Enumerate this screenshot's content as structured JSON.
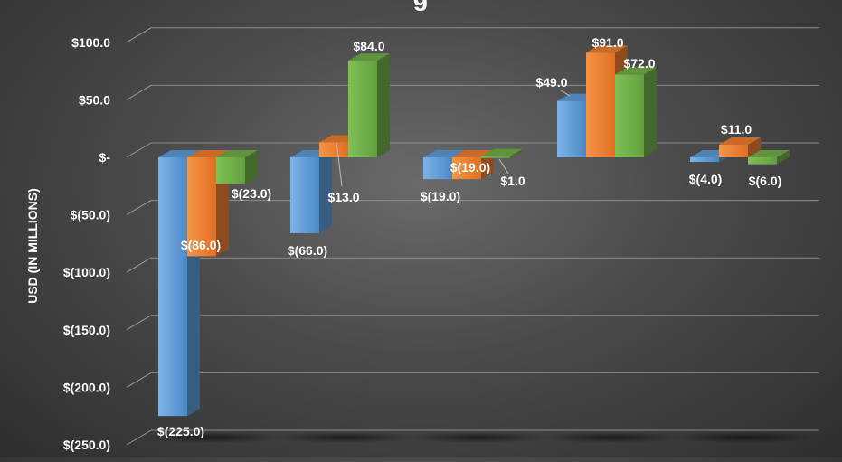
{
  "chart_data": {
    "type": "bar",
    "style": "3d-clustered-column",
    "ylabel": "USD (IN MILLIONS)",
    "ylim": [
      -250,
      100
    ],
    "y_tick_labels": [
      "$100.0",
      "$50.0",
      "$-",
      "$(50.0)",
      "$(100.0)",
      "$(150.0)",
      "$(200.0)",
      "$(250.0)"
    ],
    "y_ticks": [
      100,
      50,
      0,
      -50,
      -100,
      -150,
      -200,
      -250
    ],
    "grid": true,
    "legend": "none",
    "series_colors": [
      "#5b9bd5",
      "#ed7d31",
      "#70ad47"
    ],
    "series": [
      {
        "values": [
          -225,
          -66,
          -19,
          49,
          -4
        ],
        "labels": [
          "$(225.0)",
          "$(66.0)",
          "$(19.0)",
          "$49.0",
          "$(4.0)"
        ]
      },
      {
        "values": [
          -86,
          13,
          -19,
          91,
          11
        ],
        "labels": [
          "$(86.0)",
          "$13.0",
          "$(19.0)",
          "$91.0",
          "$11.0"
        ]
      },
      {
        "values": [
          -23,
          84,
          1,
          72,
          -6
        ],
        "labels": [
          "$(23.0)",
          "$84.0",
          "$1.0",
          "$72.0",
          "$(6.0)"
        ]
      }
    ]
  }
}
